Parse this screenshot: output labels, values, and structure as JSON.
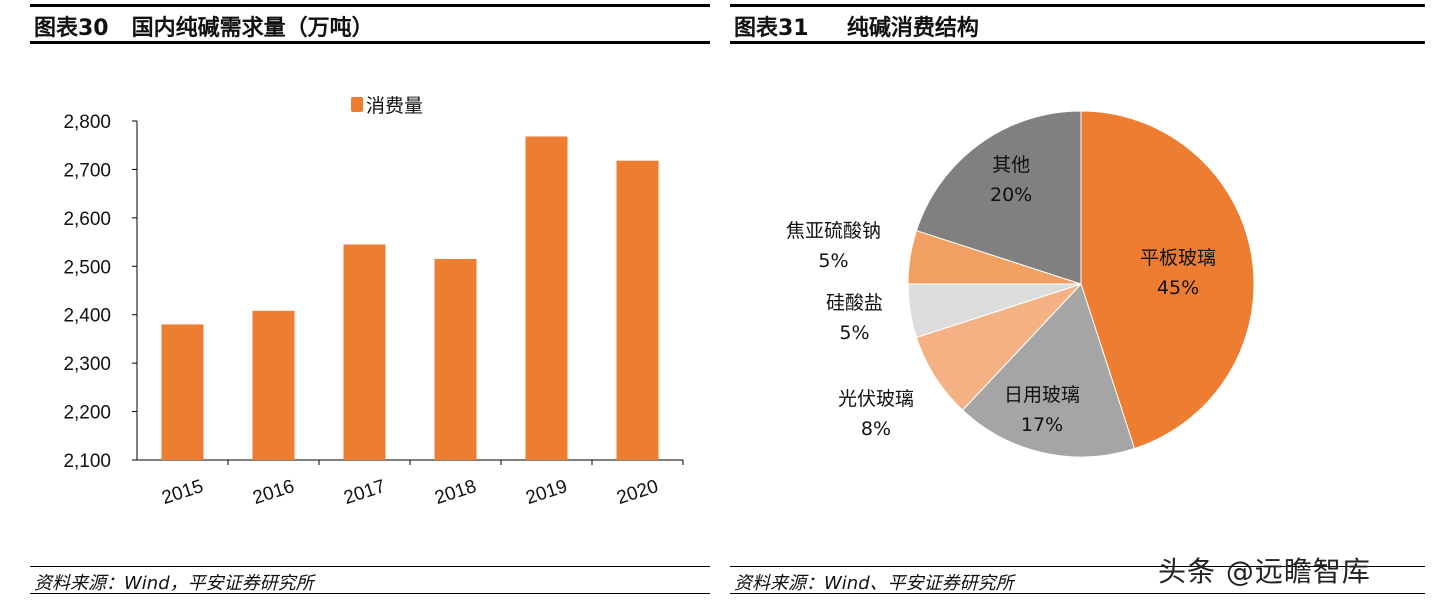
{
  "left": {
    "title": "图表30   国内纯碱需求量（万吨）",
    "source": "资料来源：Wind，平安证券研究所"
  },
  "right": {
    "title": "图表31     纯碱消费结构",
    "source": "资料来源：Wind、平安证券研究所"
  },
  "watermark": "头条 @远瞻智库",
  "chart_data": [
    {
      "type": "bar",
      "title": "",
      "xlabel": "",
      "ylabel": "",
      "categories": [
        "2015",
        "2016",
        "2017",
        "2018",
        "2019",
        "2020"
      ],
      "series": [
        {
          "name": "消费量",
          "values": [
            2380,
            2408,
            2545,
            2515,
            2768,
            2718
          ],
          "color": "#ED7D31"
        }
      ],
      "ylim": [
        2100,
        2800
      ],
      "yticks": [
        "2,100",
        "2,200",
        "2,300",
        "2,400",
        "2,500",
        "2,600",
        "2,700",
        "2,800"
      ],
      "grid": false,
      "legend": "top"
    },
    {
      "type": "pie",
      "title": "",
      "slices": [
        {
          "label": "平板玻璃",
          "value": 45,
          "text": "45%",
          "color": "#ED7D31"
        },
        {
          "label": "日用玻璃",
          "value": 17,
          "text": "17%",
          "color": "#A5A5A5"
        },
        {
          "label": "光伏玻璃",
          "value": 8,
          "text": "8%",
          "color": "#F4B183"
        },
        {
          "label": "硅酸盐",
          "value": 5,
          "text": "5%",
          "color": "#DCDCDC"
        },
        {
          "label": "焦亚硫酸钠",
          "value": 5,
          "text": "5%",
          "color": "#F19F62"
        },
        {
          "label": "其他",
          "value": 20,
          "text": "20%",
          "color": "#808080"
        }
      ]
    }
  ]
}
